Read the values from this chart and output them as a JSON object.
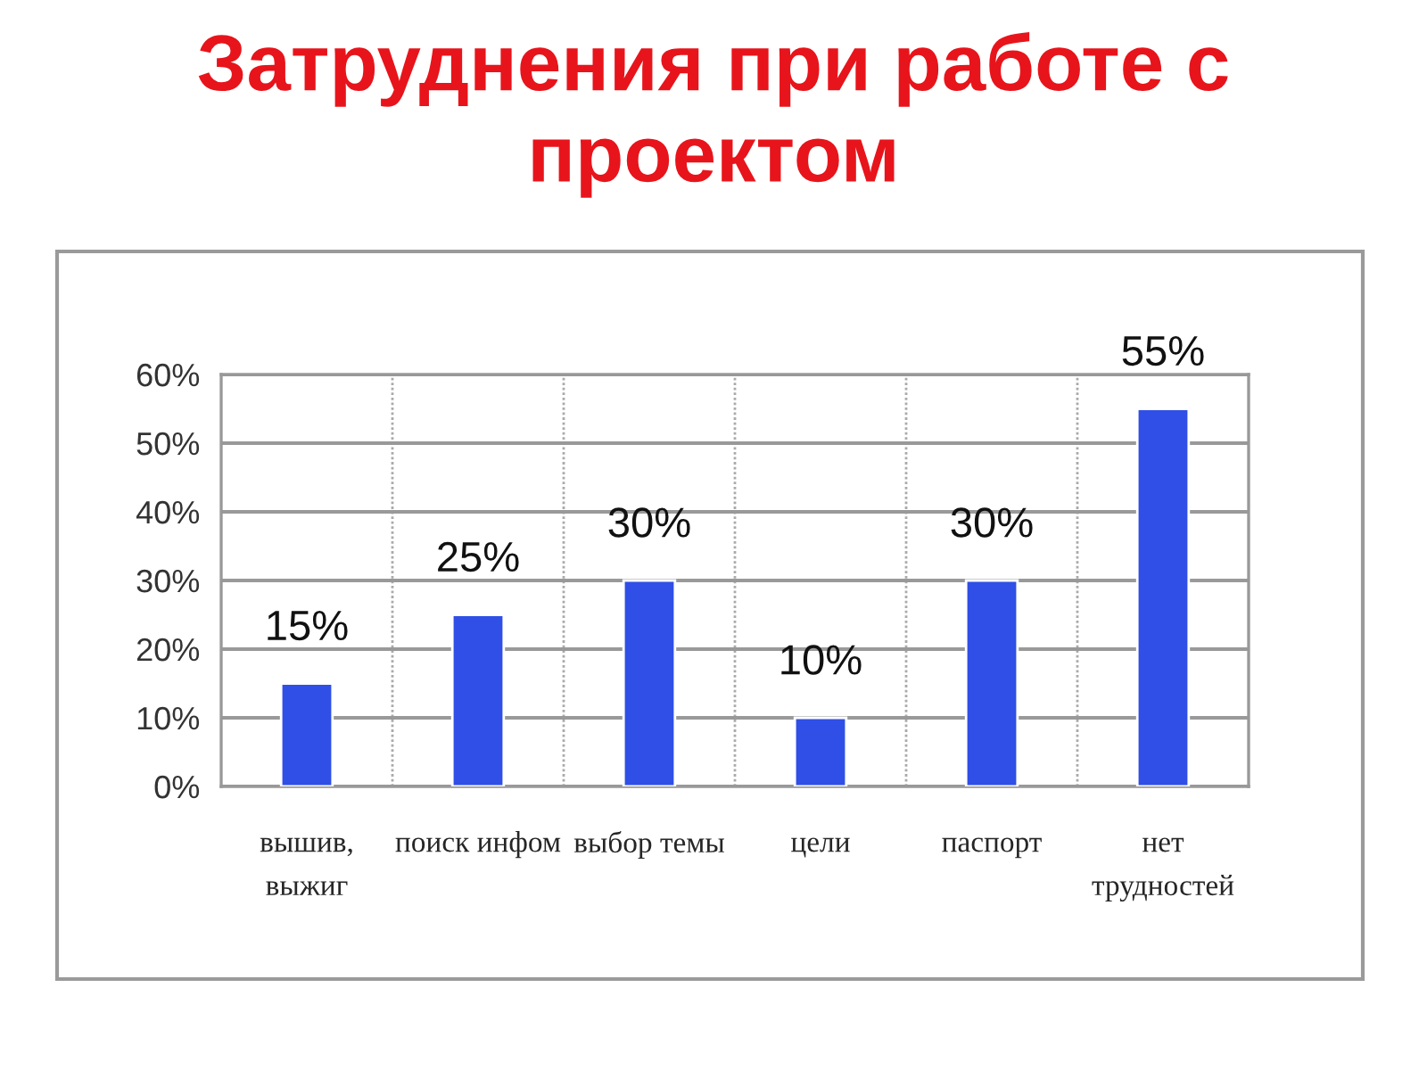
{
  "chart_data": {
    "type": "bar",
    "title": "Затруднения при работе с проектом",
    "categories": [
      "вышив, выжиг",
      "поиск инфом",
      "выбор темы",
      "цели",
      "паспорт",
      "нет трудностей"
    ],
    "values": [
      15,
      25,
      30,
      10,
      30,
      55
    ],
    "color": "#2f4fe6",
    "value_labels": [
      "15%",
      "25%",
      "30%",
      "10%",
      "30%",
      "55%"
    ],
    "ylim": [
      0,
      60
    ],
    "yticks": [
      {
        "value": 0,
        "label": "0%"
      },
      {
        "value": 10,
        "label": "10%"
      },
      {
        "value": 20,
        "label": "20%"
      },
      {
        "value": 30,
        "label": "30%"
      },
      {
        "value": 40,
        "label": "40%"
      },
      {
        "value": 50,
        "label": "50%"
      },
      {
        "value": 60,
        "label": "60%"
      }
    ],
    "grid": true,
    "legend": false
  }
}
